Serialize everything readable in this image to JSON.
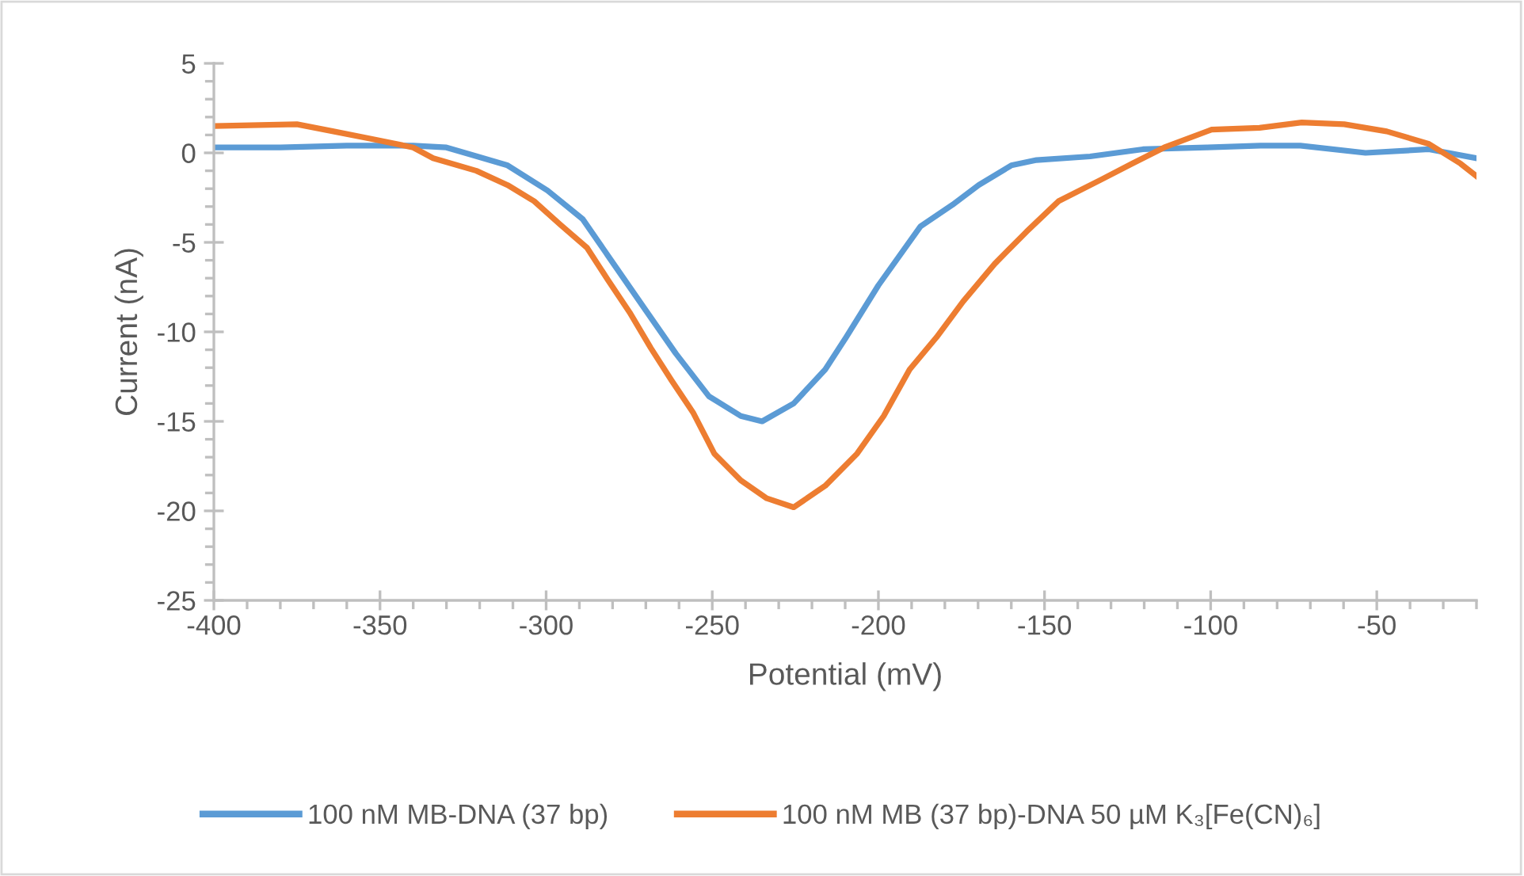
{
  "chart_data": {
    "type": "line",
    "xlabel": "Potential (mV)",
    "ylabel": "Current (nA)",
    "xlim": [
      -400,
      -20
    ],
    "ylim": [
      -25,
      5
    ],
    "xticks": [
      -400,
      {
        "value": -390,
        "label": null
      },
      {
        "value": -380,
        "label": null
      },
      {
        "value": -370,
        "label": null
      },
      {
        "value": -360,
        "label": null
      },
      -350,
      {
        "value": -340,
        "label": null
      },
      {
        "value": -330,
        "label": null
      },
      {
        "value": -320,
        "label": null
      },
      {
        "value": -310,
        "label": null
      },
      -300,
      {
        "value": -290,
        "label": null
      },
      {
        "value": -280,
        "label": null
      },
      {
        "value": -270,
        "label": null
      },
      {
        "value": -260,
        "label": null
      },
      -250,
      {
        "value": -240,
        "label": null
      },
      {
        "value": -230,
        "label": null
      },
      {
        "value": -220,
        "label": null
      },
      {
        "value": -210,
        "label": null
      },
      -200,
      {
        "value": -190,
        "label": null
      },
      {
        "value": -180,
        "label": null
      },
      {
        "value": -170,
        "label": null
      },
      {
        "value": -160,
        "label": null
      },
      -150,
      {
        "value": -140,
        "label": null
      },
      {
        "value": -130,
        "label": null
      },
      {
        "value": -120,
        "label": null
      },
      {
        "value": -110,
        "label": null
      },
      -100,
      {
        "value": -90,
        "label": null
      },
      {
        "value": -80,
        "label": null
      },
      {
        "value": -70,
        "label": null
      },
      {
        "value": -60,
        "label": null
      },
      -50,
      {
        "value": -40,
        "label": null
      },
      {
        "value": -30,
        "label": null
      },
      {
        "value": -20,
        "label": null
      }
    ],
    "yticks": [
      -25,
      {
        "value": -24,
        "label": null
      },
      {
        "value": -23,
        "label": null
      },
      {
        "value": -22,
        "label": null
      },
      {
        "value": -21,
        "label": null
      },
      -20,
      {
        "value": -19,
        "label": null
      },
      {
        "value": -18,
        "label": null
      },
      {
        "value": -17,
        "label": null
      },
      {
        "value": -16,
        "label": null
      },
      -15,
      {
        "value": -14,
        "label": null
      },
      {
        "value": -13,
        "label": null
      },
      {
        "value": -12,
        "label": null
      },
      {
        "value": -11,
        "label": null
      },
      -10,
      {
        "value": -9,
        "label": null
      },
      {
        "value": -8,
        "label": null
      },
      {
        "value": -7,
        "label": null
      },
      {
        "value": -6,
        "label": null
      },
      -5,
      {
        "value": -4,
        "label": null
      },
      {
        "value": -3,
        "label": null
      },
      {
        "value": -2,
        "label": null
      },
      {
        "value": -1,
        "label": null
      },
      0,
      {
        "value": 1,
        "label": null
      },
      {
        "value": 2,
        "label": null
      },
      {
        "value": 3,
        "label": null
      },
      {
        "value": 4,
        "label": null
      },
      5
    ],
    "grid": false,
    "legend": "bottom",
    "marker": "none",
    "line_style": "solid",
    "series": [
      {
        "name": "100 nM MB-DNA (37 bp)",
        "color": "#5b9bd5",
        "x": [
          -400,
          -380,
          -360,
          -340,
          -330,
          -322.6,
          -311.6,
          -299.6,
          -289,
          -279.7,
          -270,
          -261,
          -251,
          -241.4,
          -235,
          -225.5,
          -216,
          -209.7,
          -200,
          -187.3,
          -177.7,
          -169.8,
          -160,
          -152.4,
          -136.3,
          -120.4,
          -101.2,
          -85,
          -73,
          -53.4,
          -34.3,
          -20
        ],
        "values": [
          0.3,
          0.3,
          0.4,
          0.4,
          0.3,
          -0.1,
          -0.7,
          -2.1,
          -3.7,
          -6.2,
          -8.8,
          -11.2,
          -13.6,
          -14.7,
          -15.0,
          -14.0,
          -12.1,
          -10.3,
          -7.4,
          -4.1,
          -2.9,
          -1.8,
          -0.7,
          -0.4,
          -0.2,
          0.2,
          0.3,
          0.4,
          0.4,
          0,
          0.2,
          -0.3
        ]
      },
      {
        "name": "100 nM MB (37 bp)-DNA 50 µM K₃[Fe(CN)₆]",
        "color": "#ed7d31",
        "x": [
          -400,
          -375,
          -364,
          -353,
          -340,
          -334,
          -321,
          -311.6,
          -303.6,
          -295.8,
          -287.7,
          -281.4,
          -274.9,
          -268.5,
          -262.3,
          -255.8,
          -249.4,
          -241.4,
          -233.6,
          -225.5,
          -216,
          -206.4,
          -198.4,
          -190.6,
          -182.5,
          -174.5,
          -165,
          -155.4,
          -145.8,
          -133,
          -123.6,
          -114,
          -99.7,
          -85.3,
          -72.6,
          -59.8,
          -47,
          -34.3,
          -24.8,
          -20
        ],
        "values": [
          1.5,
          1.6,
          1.2,
          0.8,
          0.3,
          -0.3,
          -1.0,
          -1.8,
          -2.7,
          -4.0,
          -5.3,
          -7.1,
          -8.9,
          -10.9,
          -12.7,
          -14.5,
          -16.8,
          -18.3,
          -19.3,
          -19.8,
          -18.6,
          -16.8,
          -14.7,
          -12.1,
          -10.3,
          -8.3,
          -6.2,
          -4.4,
          -2.7,
          -1.5,
          -0.6,
          0.3,
          1.3,
          1.4,
          1.7,
          1.6,
          1.2,
          0.5,
          -0.6,
          -1.3
        ]
      }
    ]
  }
}
